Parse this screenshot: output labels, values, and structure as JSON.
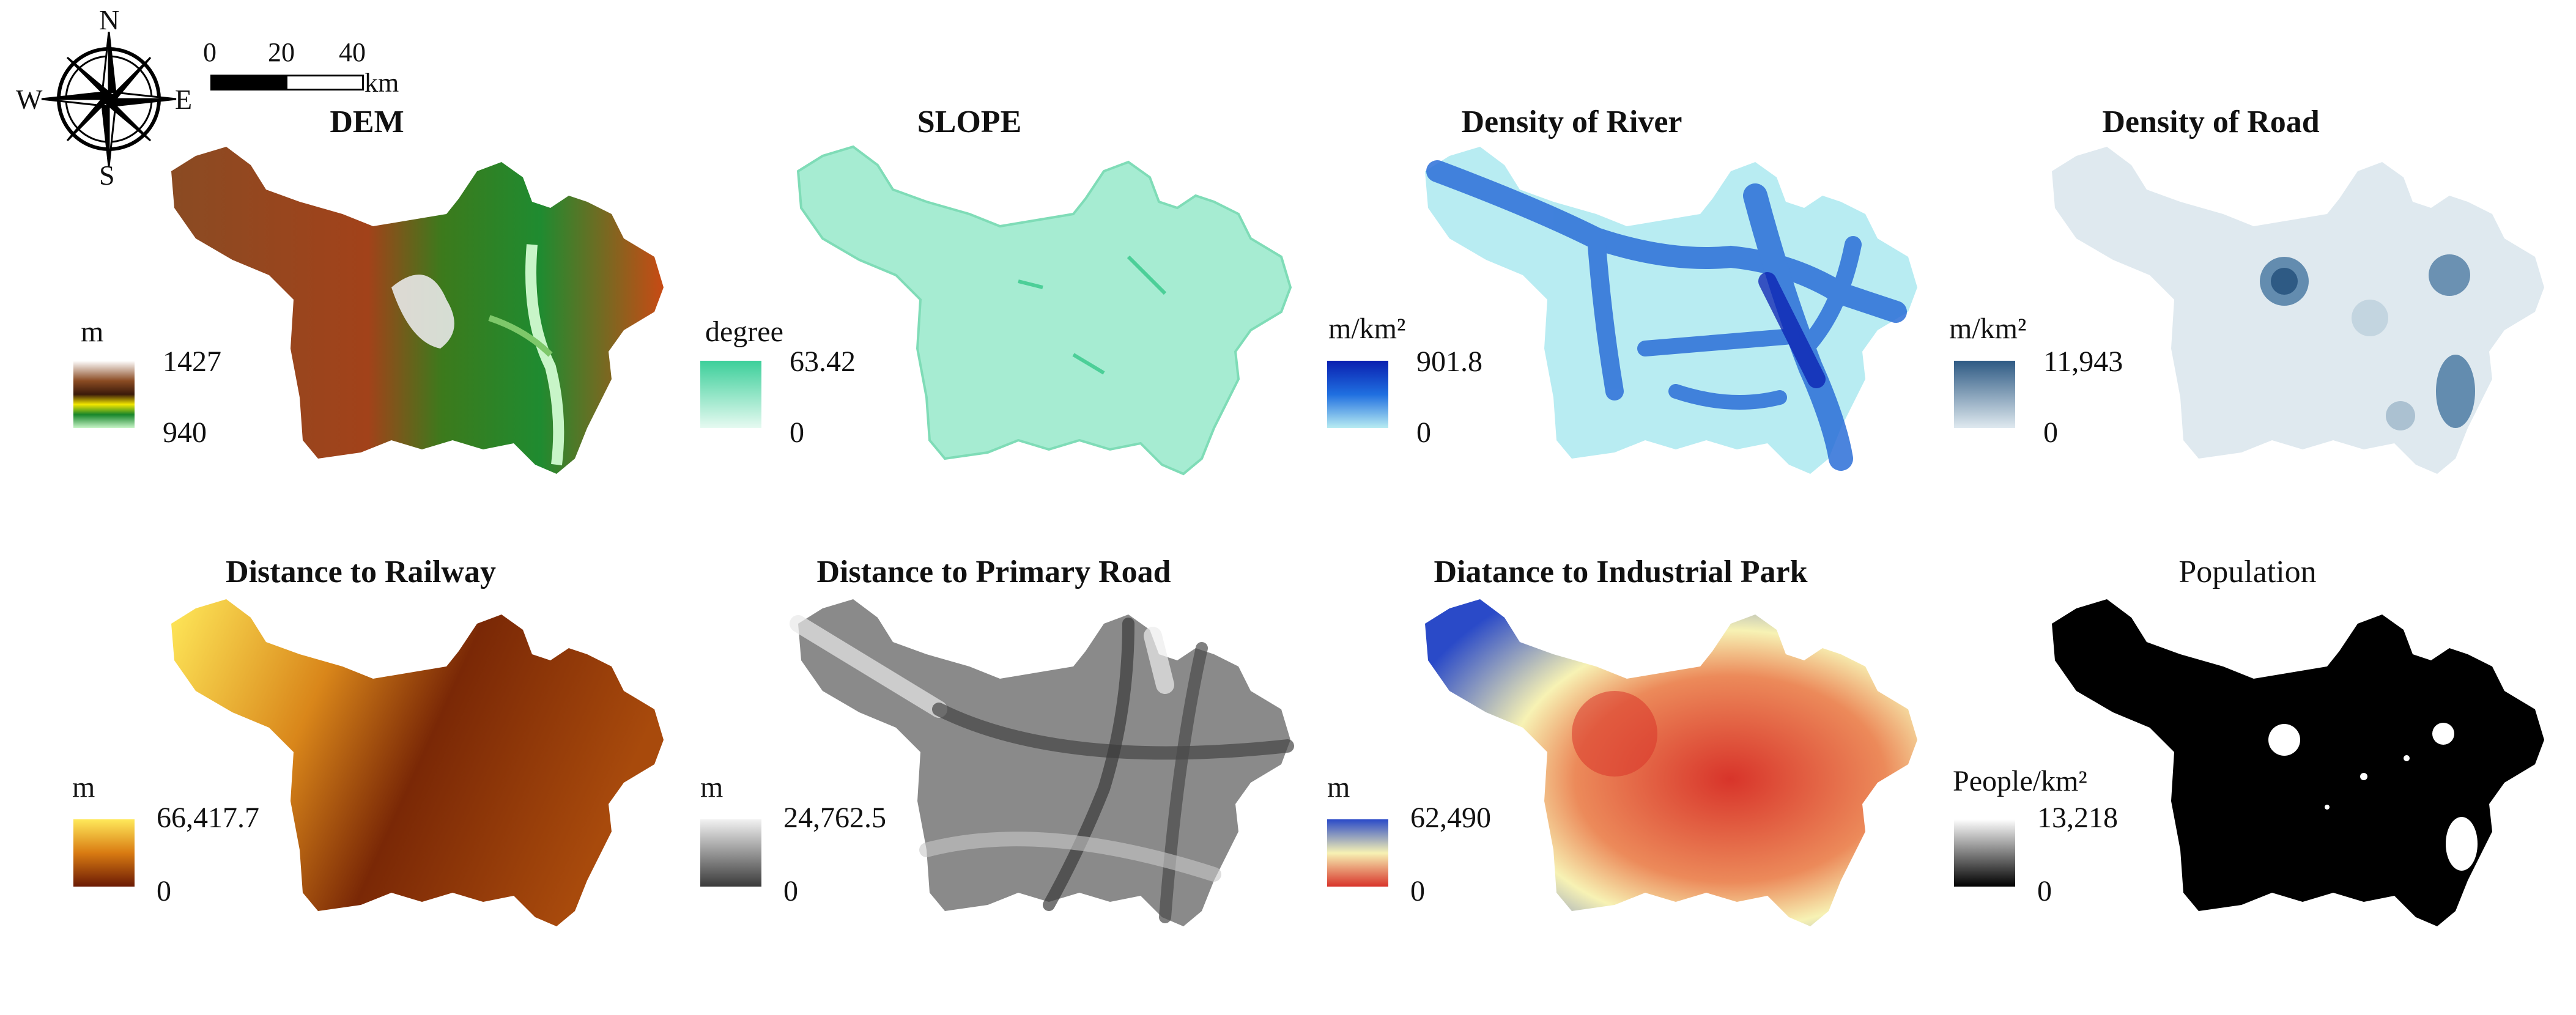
{
  "compass": {
    "north": "N",
    "south": "S",
    "east": "E",
    "west": "W"
  },
  "scalebar": {
    "ticks": [
      "0",
      "20",
      "40"
    ],
    "unit": "km"
  },
  "panels": [
    {
      "title": "DEM",
      "unit": "m",
      "max": "1427",
      "min": "940",
      "colors": [
        "#ffffff",
        "#8a4b23",
        "#5a2a12",
        "#f2e600",
        "#17862b",
        "#c8f5c8"
      ]
    },
    {
      "title": "SLOPE",
      "unit": "degree",
      "max": "63.42",
      "min": "0",
      "colors": [
        "#3ccf9a",
        "#e6faf1"
      ]
    },
    {
      "title": "Density of River",
      "unit": "m/km²",
      "max": "901.8",
      "min": "0",
      "colors": [
        "#0a1fb0",
        "#1f6fe0",
        "#b8ecf2"
      ]
    },
    {
      "title": "Density of Road",
      "unit": "m/km²",
      "max": "11,943",
      "min": "0",
      "colors": [
        "#2e5a84",
        "#dfe9ef"
      ]
    },
    {
      "title": "Distance to Railway",
      "unit": "m",
      "max": "66,417.7",
      "min": "0",
      "colors": [
        "#ffe95a",
        "#e89a1c",
        "#6b1a04"
      ]
    },
    {
      "title": "Distance to Primary Road",
      "unit": "m",
      "max": "24,762.5",
      "min": "0",
      "colors": [
        "#f2f2f2",
        "#8a8a8a",
        "#3a3a3a"
      ]
    },
    {
      "title": "Diatance to Industrial Park",
      "unit": "m",
      "max": "62,490",
      "min": "0",
      "colors": [
        "#2a4ac8",
        "#f7f2b4",
        "#d8342a"
      ]
    },
    {
      "title": "Population",
      "unit": "People/km²",
      "max": "13,218",
      "min": "0",
      "colors": [
        "#ffffff",
        "#000000"
      ]
    }
  ]
}
